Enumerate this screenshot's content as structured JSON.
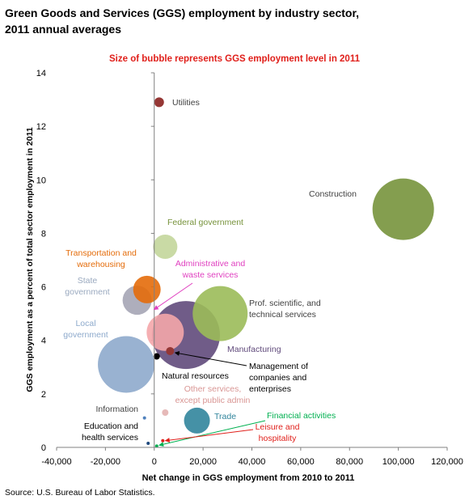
{
  "title_lines": [
    "Green Goods and Services (GGS) employment by industry sector,",
    "2011 annual averages"
  ],
  "source": "Source: U.S. Bureau of Labor Statistics.",
  "chart_data": {
    "type": "scatter",
    "subtitle": "Size of bubble represents GGS employment level in 2011",
    "subtitle_color": "#e0201b",
    "xlabel": "Net change in GGS employment from 2010 to 2011",
    "ylabel": "GGS employment as a percent of total sector employment in 2011",
    "xlim": [
      -40000,
      120000
    ],
    "ylim": [
      0,
      14
    ],
    "x_ticks": [
      -40000,
      -20000,
      0,
      20000,
      40000,
      60000,
      80000,
      100000,
      120000
    ],
    "x_tick_labels": [
      "-40,000",
      "-20,000",
      "0",
      "20,000",
      "40,000",
      "60,000",
      "80,000",
      "100,000",
      "120,000"
    ],
    "y_ticks": [
      0,
      2,
      4,
      6,
      8,
      10,
      12,
      14
    ],
    "y_tick_labels": [
      "0",
      "2",
      "4",
      "6",
      "8",
      "10",
      "12",
      "14"
    ],
    "grid": false,
    "legend": "none",
    "series": [
      {
        "label_lines": [
          "Utilities"
        ],
        "x": 2000,
        "y": 12.9,
        "r": 6,
        "color": "#953735",
        "label_color": "#404040"
      },
      {
        "label_lines": [
          "Construction"
        ],
        "x": 102000,
        "y": 8.9,
        "r": 38,
        "color": "#77933c",
        "label_color": "#404040"
      },
      {
        "label_lines": [
          "Federal government"
        ],
        "x": 4500,
        "y": 7.5,
        "r": 15,
        "color": "#c3d69b",
        "label_color": "#77933c"
      },
      {
        "label_lines": [
          "Transportation and",
          "warehousing"
        ],
        "x": -3000,
        "y": 5.9,
        "r": 17,
        "color": "#e46c0a",
        "label_color": "#e46c0a"
      },
      {
        "label_lines": [
          "State",
          "government"
        ],
        "x": -7000,
        "y": 5.5,
        "r": 18,
        "color": "#a5a5b5",
        "label_color": "#9aa9bf"
      },
      {
        "label_lines": [
          "Administrative and",
          "waste services"
        ],
        "x": 4500,
        "y": 4.3,
        "r": 23,
        "color": "#f4a6aa",
        "label_color": "#e040c0"
      },
      {
        "label_lines": [
          "Manufacturing"
        ],
        "x": 13000,
        "y": 4.2,
        "r": 42,
        "color": "#604a7b",
        "label_color": "#604a7b"
      },
      {
        "label_lines": [
          "Prof. scientific, and",
          "technical services"
        ],
        "x": 27000,
        "y": 5.0,
        "r": 34,
        "color": "#9bbb59",
        "label_color": "#404040"
      },
      {
        "label_lines": [
          "Local",
          "government"
        ],
        "x": -11500,
        "y": 3.1,
        "r": 35,
        "color": "#8eaacc",
        "label_color": "#8eaacc"
      },
      {
        "label_lines": [
          "Natural resources"
        ],
        "x": 1000,
        "y": 3.4,
        "r": 4,
        "color": "#000000",
        "label_color": "#000000"
      },
      {
        "label_lines": [
          "Management of",
          "companies and",
          "enterprises"
        ],
        "x": 6500,
        "y": 3.6,
        "r": 5,
        "color": "#953735",
        "label_color": "#000000"
      },
      {
        "label_lines": [
          "Other services,",
          "except public admin"
        ],
        "x": 4500,
        "y": 1.3,
        "r": 4,
        "color": "#e6b9b8",
        "label_color": "#d99694"
      },
      {
        "label_lines": [
          "Information"
        ],
        "x": -4000,
        "y": 1.1,
        "r": 2,
        "color": "#4f81bd",
        "label_color": "#404040"
      },
      {
        "label_lines": [
          "Trade"
        ],
        "x": 17500,
        "y": 1.0,
        "r": 16,
        "color": "#31859c",
        "label_color": "#31859c"
      },
      {
        "label_lines": [
          "Education and",
          "health services"
        ],
        "x": -2500,
        "y": 0.15,
        "r": 2,
        "color": "#1f497d",
        "label_color": "#000000"
      },
      {
        "label_lines": [
          "Leisure and",
          "hospitality"
        ],
        "x": 3500,
        "y": 0.25,
        "r": 2,
        "color": "#e0201b",
        "label_color": "#e0201b"
      },
      {
        "label_lines": [
          "Financial activities"
        ],
        "x": 1000,
        "y": 0.05,
        "r": 2,
        "color": "#00b050",
        "label_color": "#00b050"
      }
    ]
  }
}
